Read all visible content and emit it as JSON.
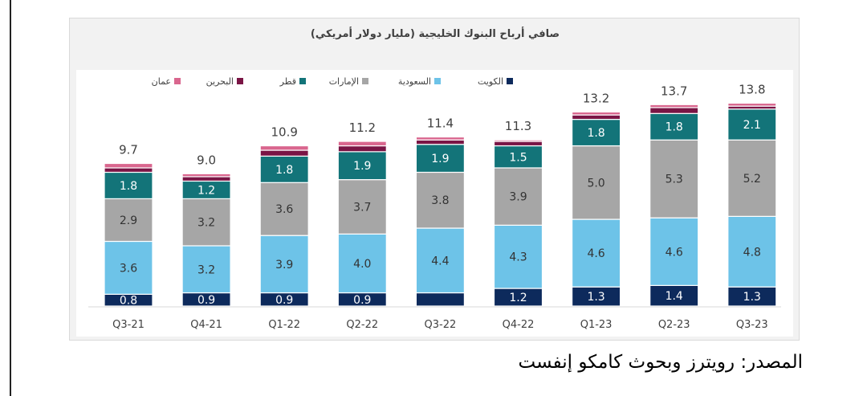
{
  "source_note": "المصدر: رويترز وبحوث كامكو إنفست",
  "chart_data": {
    "type": "bar",
    "stacked": true,
    "title": "صافي أرباح البنوك الخليجية (مليار دولار أمريكي)",
    "categories": [
      "Q3-21",
      "Q4-21",
      "Q1-22",
      "Q2-22",
      "Q3-22",
      "Q4-22",
      "Q1-23",
      "Q2-23",
      "Q3-23"
    ],
    "totals": [
      "9.7",
      "9.0",
      "10.9",
      "11.2",
      "11.4",
      "11.3",
      "13.2",
      "13.7",
      "13.8"
    ],
    "legend_position": "top",
    "grid": false,
    "series": [
      {
        "name": "الكويت",
        "color": "#0d2a5c",
        "values": [
          0.8,
          0.9,
          0.9,
          0.9,
          0.9,
          1.2,
          1.3,
          1.4,
          1.3
        ],
        "labels": [
          "0.8",
          "0.9",
          "0.9",
          "0.9",
          "",
          "1.2",
          "1.3",
          "1.4",
          "1.3"
        ]
      },
      {
        "name": "السعودية",
        "color": "#6dc3e8",
        "values": [
          3.6,
          3.2,
          3.9,
          4.0,
          4.4,
          4.3,
          4.6,
          4.6,
          4.8
        ],
        "labels": [
          "3.6",
          "3.2",
          "3.9",
          "4.0",
          "4.4",
          "4.3",
          "4.6",
          "4.6",
          "4.8"
        ]
      },
      {
        "name": "الإمارات",
        "color": "#a6a6a6",
        "values": [
          2.9,
          3.2,
          3.6,
          3.7,
          3.8,
          3.9,
          5.0,
          5.3,
          5.2
        ],
        "labels": [
          "2.9",
          "3.2",
          "3.6",
          "3.7",
          "3.8",
          "3.9",
          "5.0",
          "5.3",
          "5.2"
        ]
      },
      {
        "name": "قطر",
        "color": "#137479",
        "values": [
          1.8,
          1.2,
          1.8,
          1.9,
          1.9,
          1.5,
          1.8,
          1.8,
          2.1
        ],
        "labels": [
          "1.8",
          "1.2",
          "1.8",
          "1.9",
          "1.9",
          "1.5",
          "1.8",
          "1.8",
          "2.1"
        ]
      },
      {
        "name": "البحرين",
        "color": "#7a1545",
        "values": [
          0.3,
          0.3,
          0.4,
          0.4,
          0.3,
          0.3,
          0.3,
          0.4,
          0.2
        ],
        "labels": [
          "",
          "",
          "",
          "",
          "",
          "",
          "",
          "",
          ""
        ]
      },
      {
        "name": "عمان",
        "color": "#d9668e",
        "values": [
          0.3,
          0.2,
          0.3,
          0.3,
          0.2,
          0.1,
          0.2,
          0.2,
          0.2
        ],
        "labels": [
          "",
          "",
          "",
          "",
          "",
          "",
          "",
          "",
          ""
        ]
      }
    ],
    "ylim": [
      0,
      15
    ]
  }
}
